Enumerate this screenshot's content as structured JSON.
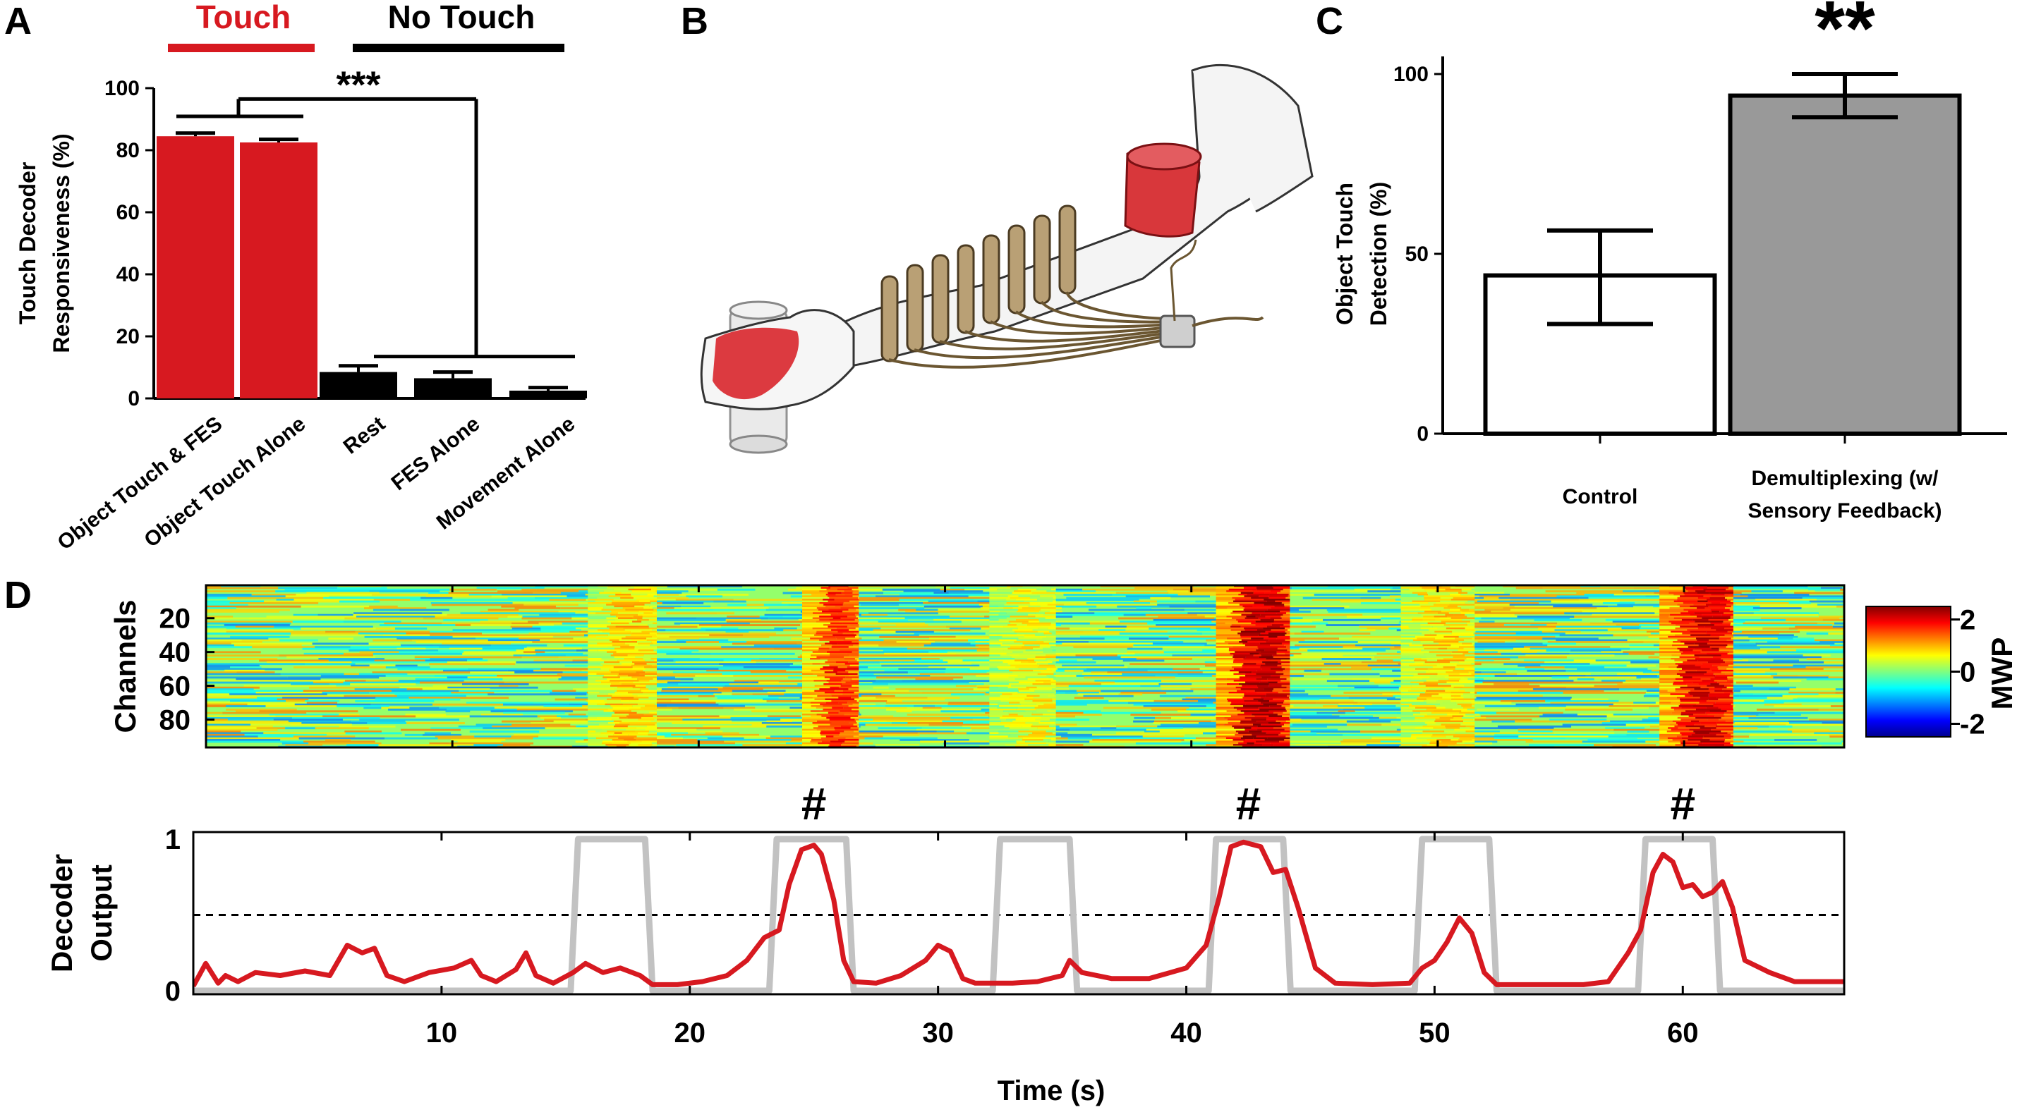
{
  "panels": {
    "A": "A",
    "B": "B",
    "C": "C",
    "D": "D"
  },
  "chart_data": [
    {
      "panel": "A",
      "type": "bar",
      "group_labels": [
        {
          "name": "Touch",
          "color": "#d71920"
        },
        {
          "name": "No Touch",
          "color": "#000000"
        }
      ],
      "categories": [
        "Object Touch & FES",
        "Object Touch Alone",
        "Rest",
        "FES Alone",
        "Movement Alone"
      ],
      "values": [
        84.5,
        82.5,
        8.5,
        6.5,
        2.5
      ],
      "errors": [
        1.0,
        1.0,
        2.0,
        2.0,
        1.0
      ],
      "colors": [
        "#d71920",
        "#d71920",
        "#000000",
        "#000000",
        "#000000"
      ],
      "ylabel": [
        "Touch Decoder",
        "Responsiveness (%)"
      ],
      "ylim": [
        0,
        100
      ],
      "yticks": [
        0,
        20,
        40,
        60,
        80,
        100
      ],
      "significance": "***"
    },
    {
      "panel": "C",
      "type": "bar",
      "categories": [
        [
          "Control"
        ],
        [
          "Demultiplexing (w/",
          "Sensory Feedback)"
        ]
      ],
      "values": [
        44,
        94
      ],
      "error_low": [
        30.5,
        88
      ],
      "error_high": [
        56.5,
        100
      ],
      "colors": [
        "#ffffff",
        "#999999"
      ],
      "ylabel": [
        "Object Touch",
        "Detection (%)"
      ],
      "ylim": [
        0,
        100
      ],
      "yticks": [
        0,
        50,
        100
      ],
      "significance": "**"
    },
    {
      "panel": "D",
      "type": "heatmap",
      "ylabel": "Channels",
      "yticks": [
        20,
        40,
        60,
        80
      ],
      "channels": 96,
      "x_range": [
        0,
        66.5
      ],
      "activation_windows_s": [
        [
          15.5,
          18.3
        ],
        [
          24.2,
          26.5
        ],
        [
          31.8,
          34.5
        ],
        [
          41.0,
          44.0
        ],
        [
          48.5,
          51.5
        ],
        [
          59.0,
          62.0
        ]
      ],
      "activation_strength": [
        0.8,
        1.6,
        0.5,
        2.2,
        0.7,
        2.0
      ],
      "colorbar": {
        "label": "MWP",
        "ticks": [
          2,
          0,
          -2
        ],
        "range": [
          -2.5,
          2.5
        ]
      }
    },
    {
      "panel": "D",
      "type": "line",
      "xlabel": "Time (s)",
      "ylabel": [
        "Decoder",
        "Output"
      ],
      "xlim": [
        0,
        66.5
      ],
      "ylim": [
        0,
        1
      ],
      "xticks": [
        10,
        20,
        30,
        40,
        50,
        60
      ],
      "yticks": [
        0,
        1
      ],
      "threshold": 0.5,
      "markers": [
        {
          "x": 25,
          "text": "#"
        },
        {
          "x": 42.5,
          "text": "#"
        },
        {
          "x": 60,
          "text": "#"
        }
      ],
      "series": [
        {
          "role": "gray-step",
          "color": "#c2c2c2",
          "x": [
            0,
            15.2,
            15.5,
            18.2,
            18.5,
            23.2,
            23.5,
            26.3,
            26.6,
            32.2,
            32.5,
            35.3,
            35.6,
            40.9,
            41.2,
            43.9,
            44.2,
            49.2,
            49.5,
            52.2,
            52.5,
            58.2,
            58.5,
            61.2,
            61.5,
            66.5
          ],
          "y": [
            0,
            0,
            1,
            1,
            0,
            0,
            1,
            1,
            0,
            0,
            1,
            1,
            0,
            0,
            1,
            1,
            0,
            0,
            1,
            1,
            0,
            0,
            1,
            1,
            0,
            0
          ]
        },
        {
          "role": "red-output",
          "color": "#d71920",
          "x": [
            0,
            0.5,
            1.0,
            1.3,
            1.8,
            2.5,
            3.5,
            4.5,
            5.5,
            6.2,
            6.8,
            7.3,
            7.8,
            8.5,
            9.5,
            10.5,
            11.2,
            11.6,
            12.2,
            13.0,
            13.4,
            13.8,
            14.5,
            15.3,
            15.8,
            16.5,
            17.2,
            18.0,
            18.5,
            19.5,
            20.5,
            21.5,
            22.3,
            23.0,
            23.6,
            24.0,
            24.5,
            25.0,
            25.3,
            25.8,
            26.2,
            26.6,
            27.5,
            28.5,
            29.5,
            30.0,
            30.5,
            31.0,
            31.5,
            32.0,
            33.0,
            34.0,
            35.0,
            35.3,
            35.8,
            37.0,
            38.5,
            40.0,
            40.8,
            41.3,
            41.8,
            42.3,
            43.0,
            43.5,
            44.0,
            44.5,
            45.2,
            46.0,
            47.5,
            49.0,
            49.5,
            50.0,
            50.5,
            51.0,
            51.5,
            52.0,
            52.5,
            54.0,
            56.0,
            57.0,
            57.8,
            58.3,
            58.8,
            59.2,
            59.6,
            60.0,
            60.4,
            60.8,
            61.2,
            61.6,
            62.0,
            62.5,
            63.5,
            64.5,
            66.5
          ],
          "y": [
            0.03,
            0.18,
            0.05,
            0.1,
            0.06,
            0.12,
            0.1,
            0.13,
            0.1,
            0.3,
            0.25,
            0.28,
            0.1,
            0.06,
            0.12,
            0.15,
            0.2,
            0.1,
            0.06,
            0.14,
            0.25,
            0.1,
            0.05,
            0.12,
            0.18,
            0.12,
            0.15,
            0.1,
            0.04,
            0.04,
            0.06,
            0.1,
            0.2,
            0.35,
            0.4,
            0.7,
            0.93,
            0.96,
            0.9,
            0.6,
            0.2,
            0.06,
            0.05,
            0.1,
            0.2,
            0.3,
            0.26,
            0.08,
            0.05,
            0.05,
            0.05,
            0.06,
            0.1,
            0.2,
            0.12,
            0.08,
            0.08,
            0.15,
            0.3,
            0.6,
            0.95,
            0.98,
            0.95,
            0.78,
            0.8,
            0.55,
            0.15,
            0.05,
            0.04,
            0.05,
            0.15,
            0.2,
            0.32,
            0.48,
            0.38,
            0.12,
            0.04,
            0.04,
            0.04,
            0.06,
            0.25,
            0.4,
            0.78,
            0.9,
            0.85,
            0.68,
            0.7,
            0.62,
            0.65,
            0.72,
            0.55,
            0.2,
            0.12,
            0.06,
            0.06
          ]
        }
      ]
    }
  ]
}
